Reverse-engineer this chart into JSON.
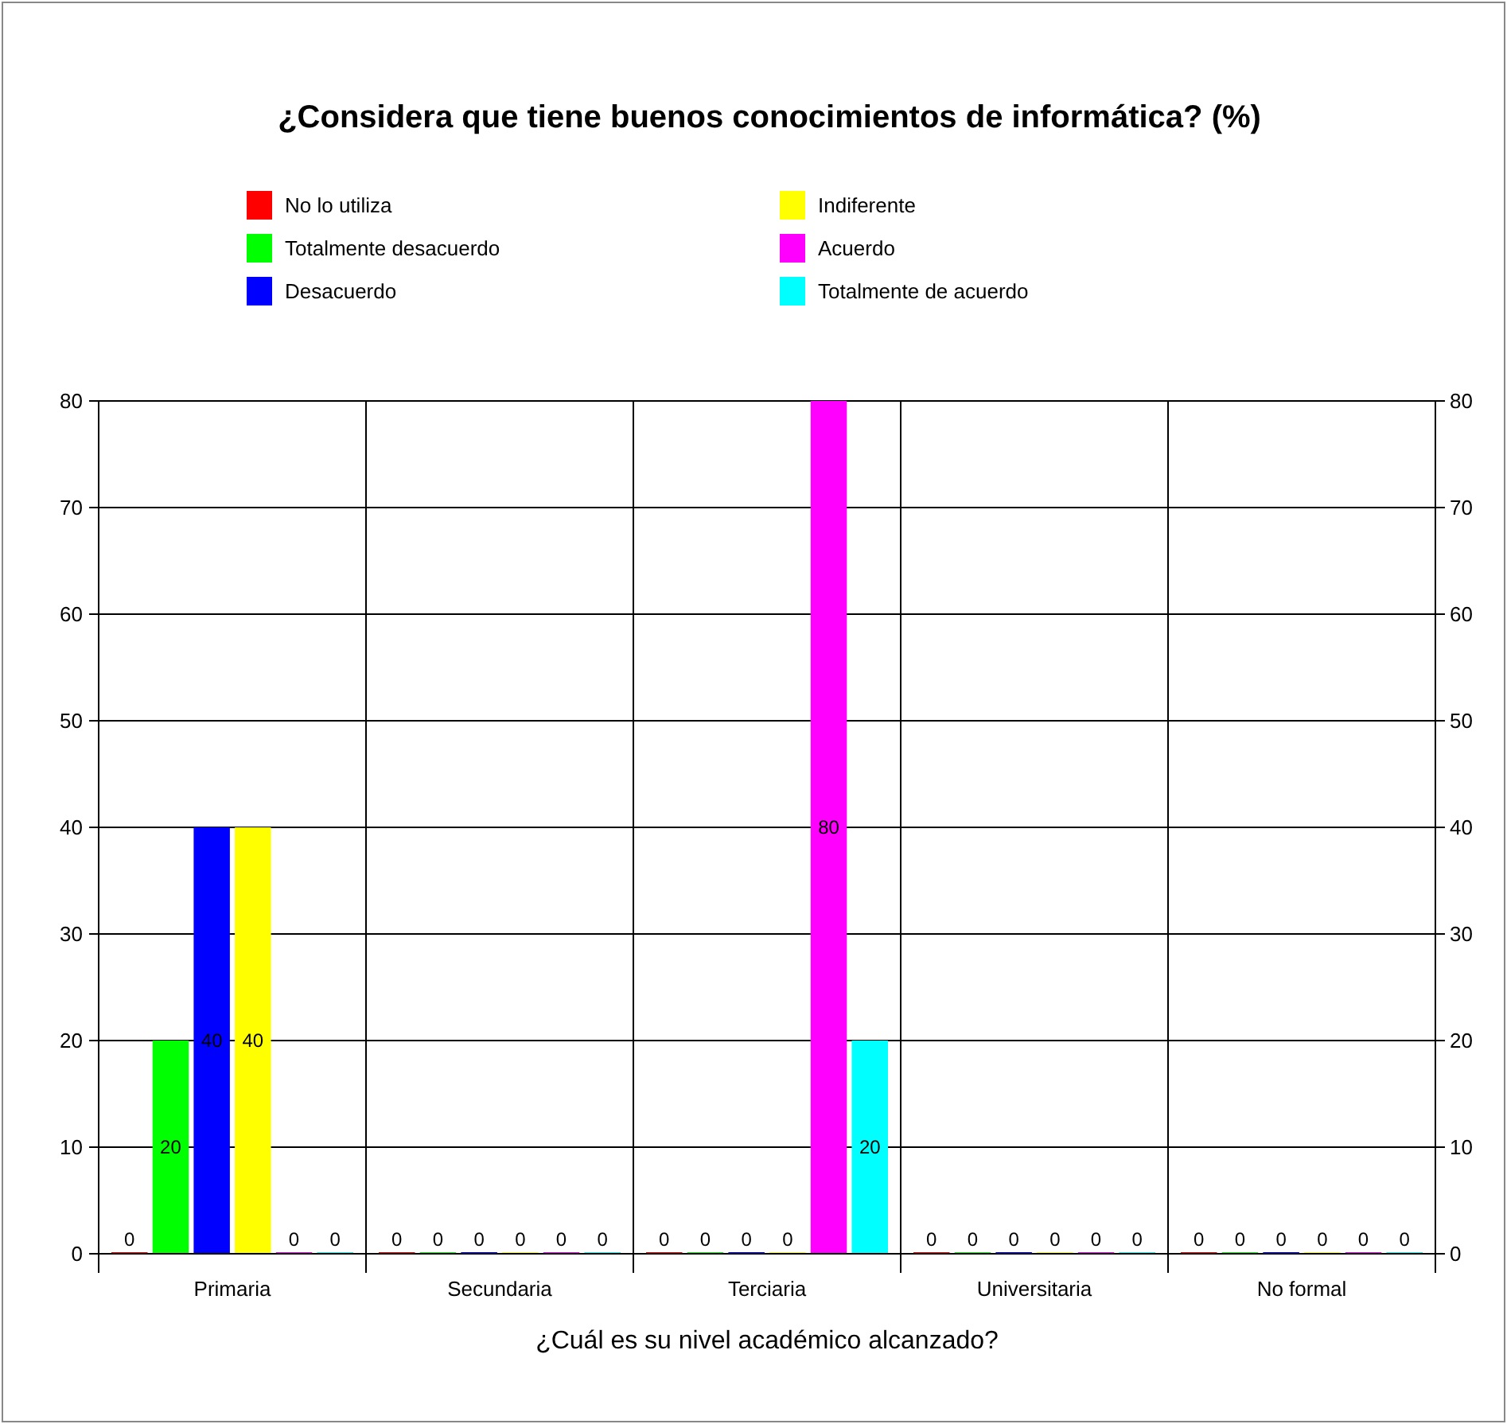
{
  "chart_data": {
    "type": "bar",
    "title": "¿Considera que tiene buenos conocimientos de informática? (%)",
    "xlabel": "¿Cuál es su nivel académico alcanzado?",
    "categories": [
      "Primaria",
      "Secundaria",
      "Terciaria",
      "Universitaria",
      "No formal"
    ],
    "series": [
      {
        "name": "No lo utiliza",
        "color": "#ff0000",
        "values": [
          0,
          0,
          0,
          0,
          0
        ]
      },
      {
        "name": "Totalmente desacuerdo",
        "color": "#00ff00",
        "values": [
          20,
          0,
          0,
          0,
          0
        ]
      },
      {
        "name": "Desacuerdo",
        "color": "#0000ff",
        "values": [
          40,
          0,
          0,
          0,
          0
        ]
      },
      {
        "name": "Indiferente",
        "color": "#ffff00",
        "values": [
          40,
          0,
          0,
          0,
          0
        ]
      },
      {
        "name": "Acuerdo",
        "color": "#ff00ff",
        "values": [
          0,
          0,
          80,
          0,
          0
        ]
      },
      {
        "name": "Totalmente de acuerdo",
        "color": "#00ffff",
        "values": [
          0,
          0,
          20,
          0,
          0
        ]
      }
    ],
    "ylim": [
      0,
      80
    ],
    "yticks": [
      0,
      10,
      20,
      30,
      40,
      50,
      60,
      70,
      80
    ],
    "y2lim": [
      0,
      80
    ],
    "y2ticks": [
      0,
      10,
      20,
      30,
      40,
      50,
      60,
      70,
      80
    ],
    "grid": true,
    "legend": "top",
    "data_labels": true
  }
}
